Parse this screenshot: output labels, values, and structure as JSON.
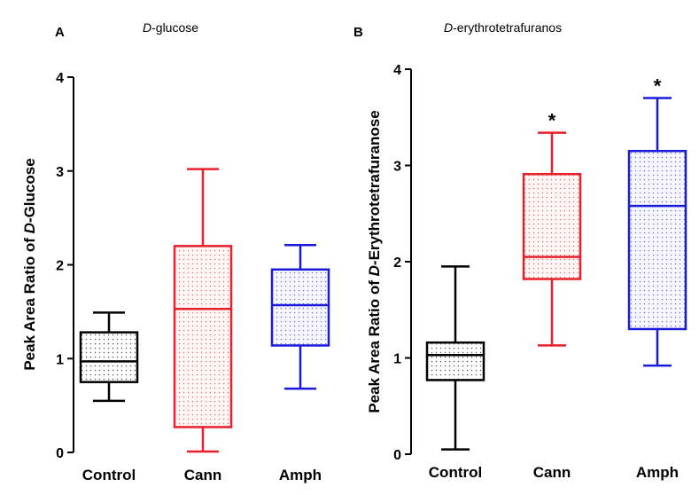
{
  "chart_data": [
    {
      "type": "box",
      "panel_letter": "A",
      "title_italic": "D",
      "title_rest": "-glucose",
      "ylabel_pre": "Peak Area Ratio of ",
      "ylabel_italic": "D",
      "ylabel_post": "-Glucose",
      "ylim": [
        0,
        4
      ],
      "yticks": [
        "0",
        "1",
        "2",
        "3",
        "4"
      ],
      "categories": [
        "Control",
        "Cann",
        "Amph"
      ],
      "colors": [
        "#000000",
        "#e8202a",
        "#1a1adc"
      ],
      "series": [
        {
          "min": 0.55,
          "q1": 0.75,
          "median": 0.97,
          "q3": 1.28,
          "max": 1.49,
          "annotation": ""
        },
        {
          "min": 0.01,
          "q1": 0.27,
          "median": 1.53,
          "q3": 2.2,
          "max": 3.02,
          "annotation": ""
        },
        {
          "min": 0.68,
          "q1": 1.14,
          "median": 1.57,
          "q3": 1.95,
          "max": 2.21,
          "annotation": ""
        }
      ]
    },
    {
      "type": "box",
      "panel_letter": "B",
      "title_italic": "D",
      "title_rest": "-erythrotetrafuranos",
      "ylabel_pre": "Peak Area Ratio of ",
      "ylabel_italic": "D",
      "ylabel_post": "-Erythrotetrafuranose",
      "ylim": [
        0,
        4
      ],
      "yticks": [
        "0",
        "1",
        "2",
        "3",
        "4"
      ],
      "categories": [
        "Control",
        "Cann",
        "Amph"
      ],
      "colors": [
        "#000000",
        "#e8202a",
        "#1a1adc"
      ],
      "series": [
        {
          "min": 0.05,
          "q1": 0.77,
          "median": 1.03,
          "q3": 1.16,
          "max": 1.95,
          "annotation": ""
        },
        {
          "min": 1.13,
          "q1": 1.82,
          "median": 2.05,
          "q3": 2.91,
          "max": 3.34,
          "annotation": "*"
        },
        {
          "min": 0.92,
          "q1": 1.3,
          "median": 2.58,
          "q3": 3.15,
          "max": 3.7,
          "annotation": "*"
        }
      ]
    }
  ]
}
